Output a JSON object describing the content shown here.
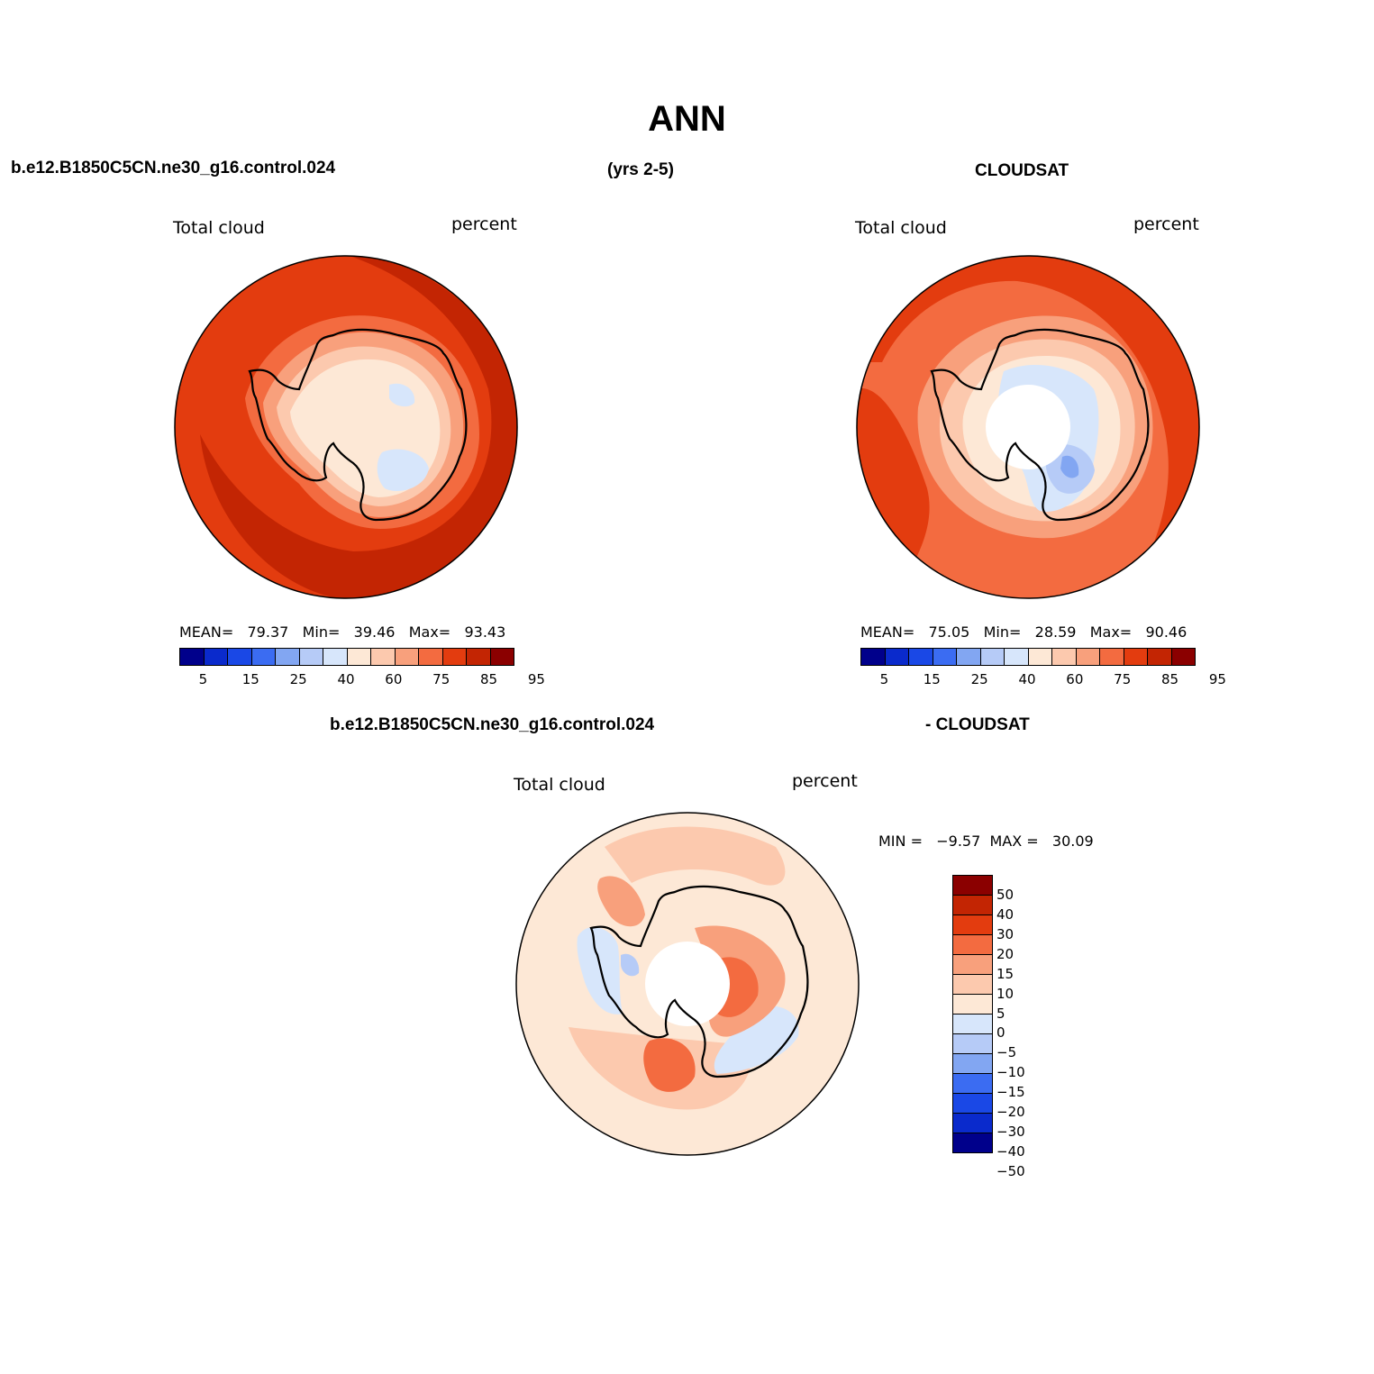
{
  "title": "ANN",
  "header": {
    "case": "b.e12.B1850C5CN.ne30_g16.control.024",
    "years": "(yrs 2-5)",
    "obs": "CLOUDSAT"
  },
  "colors": {
    "abs_scale": [
      "#00008b",
      "#0a2acc",
      "#1a48e6",
      "#3b6cf2",
      "#82a6f2",
      "#b6cbf7",
      "#d7e6fb",
      "#fde8d6",
      "#fcc9ae",
      "#f8a07c",
      "#f36b40",
      "#e33c0f",
      "#c32503",
      "#8b0000"
    ],
    "diff_scale": [
      "#8b0000",
      "#c32503",
      "#e33c0f",
      "#f36b40",
      "#f8a07c",
      "#fcc9ae",
      "#fde8d6",
      "#d7e6fb",
      "#b6cbf7",
      "#82a6f2",
      "#3b6cf2",
      "#1a48e6",
      "#0a2acc",
      "#00008b"
    ],
    "coastline": "#000000"
  },
  "panels": {
    "model": {
      "title": "Total cloud",
      "units": "percent",
      "mean_label": "MEAN=",
      "mean": "79.37",
      "min_label": "Min=",
      "min": "39.46",
      "max_label": "Max=",
      "max": "93.43"
    },
    "obs": {
      "title": "Total cloud",
      "units": "percent",
      "mean_label": "MEAN=",
      "mean": "75.05",
      "min_label": "Min=",
      "min": "28.59",
      "max_label": "Max=",
      "max": "90.46"
    },
    "diff": {
      "header_left": "b.e12.B1850C5CN.ne30_g16.control.024",
      "header_right": "- CLOUDSAT",
      "title": "Total cloud",
      "units": "percent",
      "min_label": "MIN =",
      "min": "−9.57",
      "max_label": "MAX =",
      "max": "30.09"
    }
  },
  "abs_ticks": [
    "5",
    "15",
    "25",
    "40",
    "60",
    "75",
    "85",
    "95"
  ],
  "diff_ticks": [
    "50",
    "40",
    "30",
    "20",
    "15",
    "10",
    "5",
    "0",
    "−5",
    "−10",
    "−15",
    "−20",
    "−30",
    "−40",
    "−50"
  ]
}
